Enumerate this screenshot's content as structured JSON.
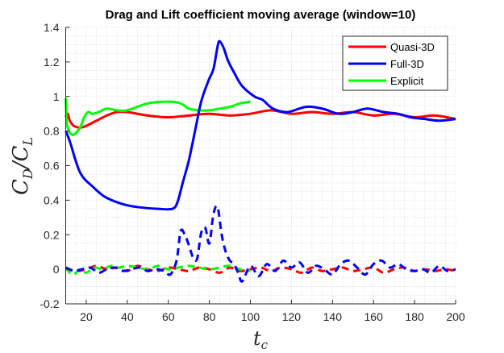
{
  "chart_data": {
    "type": "line",
    "title": "Drag and Lift coefficient moving average (window=10)",
    "xlabel": "t",
    "xlabel_sub": "c",
    "ylabel_parts": [
      "C",
      "D",
      "/C",
      "L"
    ],
    "xlim": [
      10,
      200
    ],
    "ylim": [
      -0.2,
      1.4
    ],
    "xticks": [
      20,
      40,
      60,
      80,
      100,
      120,
      140,
      160,
      180,
      200
    ],
    "yticks": [
      -0.2,
      0,
      0.2,
      0.4,
      0.6,
      0.8,
      1,
      1.2,
      1.4
    ],
    "ytick_labels": [
      "-0.2",
      "0",
      "0.2",
      "0.4",
      "0.6",
      "0.8",
      "1",
      "1.2",
      "1.4"
    ],
    "grid": "minor-dotted",
    "legend": {
      "position": "top-right",
      "entries": [
        "Quasi-3D",
        "Full-3D",
        "Explicit"
      ]
    },
    "colors": {
      "Quasi-3D": "#ff0000",
      "Full-3D": "#0000ff",
      "Explicit": "#00ff00"
    },
    "series": [
      {
        "name": "Quasi-3D",
        "quantity": "CD",
        "style": "solid",
        "x": [
          10,
          11,
          12,
          14,
          17,
          20,
          25,
          30,
          35,
          40,
          50,
          60,
          70,
          80,
          90,
          100,
          110,
          120,
          130,
          140,
          150,
          160,
          170,
          180,
          190,
          200
        ],
        "y": [
          0.88,
          0.9,
          0.86,
          0.83,
          0.82,
          0.83,
          0.86,
          0.89,
          0.91,
          0.91,
          0.89,
          0.88,
          0.89,
          0.9,
          0.89,
          0.9,
          0.92,
          0.9,
          0.91,
          0.9,
          0.91,
          0.89,
          0.9,
          0.88,
          0.89,
          0.87
        ]
      },
      {
        "name": "Full-3D",
        "quantity": "CD",
        "style": "solid",
        "x": [
          10,
          12,
          17,
          23,
          29,
          37,
          45,
          55,
          62,
          64.5,
          67,
          70,
          73,
          76,
          79.5,
          82,
          84,
          85,
          87,
          89,
          92,
          96,
          102,
          106,
          111,
          118,
          127,
          135,
          143,
          150,
          157,
          165,
          172,
          178,
          185,
          192,
          200
        ],
        "y": [
          0.8,
          0.74,
          0.56,
          0.48,
          0.42,
          0.38,
          0.36,
          0.35,
          0.35,
          0.39,
          0.5,
          0.63,
          0.8,
          0.97,
          1.09,
          1.16,
          1.29,
          1.32,
          1.28,
          1.21,
          1.14,
          1.06,
          1.0,
          0.98,
          0.93,
          0.91,
          0.94,
          0.93,
          0.9,
          0.91,
          0.93,
          0.91,
          0.9,
          0.88,
          0.87,
          0.86,
          0.87
        ]
      },
      {
        "name": "Explicit",
        "quantity": "CD",
        "style": "solid",
        "x": [
          10,
          10.5,
          11,
          12,
          14,
          17,
          19,
          21,
          23,
          26,
          30,
          35,
          40,
          50,
          60,
          66,
          70,
          75,
          80,
          85,
          90,
          95,
          100
        ],
        "y": [
          0.99,
          0.85,
          0.82,
          0.79,
          0.78,
          0.82,
          0.88,
          0.91,
          0.9,
          0.91,
          0.93,
          0.92,
          0.92,
          0.96,
          0.97,
          0.96,
          0.93,
          0.92,
          0.92,
          0.93,
          0.94,
          0.96,
          0.97
        ]
      },
      {
        "name": "Quasi-3D",
        "quantity": "CL",
        "style": "dashed",
        "x": [
          10,
          15,
          20,
          25,
          30,
          35,
          40,
          45,
          50,
          55,
          60,
          65,
          70,
          75,
          80,
          85,
          90,
          95,
          100,
          105,
          110,
          115,
          120,
          125,
          130,
          135,
          140,
          145,
          150,
          155,
          160,
          165,
          170,
          175,
          180,
          185,
          190,
          195,
          200
        ],
        "y": [
          0.01,
          -0.01,
          0.0,
          0.02,
          0.0,
          0.01,
          -0.01,
          0.02,
          0.0,
          -0.01,
          0.01,
          0.0,
          -0.01,
          0.01,
          0.0,
          -0.02,
          0.01,
          -0.01,
          0.0,
          0.01,
          -0.01,
          0.01,
          0.0,
          -0.02,
          0.01,
          -0.01,
          0.0,
          0.01,
          -0.01,
          0.0,
          0.01,
          -0.02,
          0.0,
          0.01,
          -0.01,
          0.0,
          -0.01,
          0.0,
          -0.01
        ]
      },
      {
        "name": "Full-3D",
        "quantity": "CL",
        "style": "dashed",
        "x": [
          10,
          14,
          18,
          22,
          26,
          30,
          34,
          38,
          42,
          46,
          50,
          54,
          58,
          61,
          64,
          66,
          68,
          70,
          72,
          74,
          76,
          78,
          80,
          82,
          84,
          86,
          88,
          90,
          92,
          94,
          96,
          100,
          104,
          108,
          112,
          116,
          120,
          124,
          128,
          132,
          136,
          140,
          144,
          148,
          152,
          156,
          160,
          164,
          168,
          172,
          176,
          180,
          184,
          188,
          192,
          196,
          200
        ],
        "y": [
          0.01,
          -0.01,
          0.0,
          0.01,
          -0.02,
          0.0,
          0.01,
          -0.01,
          0.0,
          0.01,
          -0.01,
          0.0,
          -0.01,
          -0.03,
          0.05,
          0.22,
          0.2,
          0.14,
          0.07,
          0.06,
          0.21,
          0.24,
          0.15,
          0.32,
          0.36,
          0.2,
          0.1,
          0.05,
          0.03,
          -0.02,
          -0.07,
          0.02,
          -0.04,
          0.03,
          -0.01,
          0.05,
          0.01,
          0.04,
          -0.02,
          0.02,
          0.0,
          -0.03,
          0.03,
          0.05,
          0.01,
          -0.03,
          0.03,
          0.05,
          0.01,
          0.03,
          0.0,
          -0.01,
          0.0,
          -0.02,
          0.02,
          -0.01,
          0.0
        ]
      },
      {
        "name": "Explicit",
        "quantity": "CL",
        "style": "dashed",
        "x": [
          10,
          12,
          14,
          17,
          20,
          24,
          28,
          32,
          36,
          40,
          45,
          50,
          55,
          60,
          65,
          70,
          75,
          80,
          85,
          90,
          95,
          100
        ],
        "y": [
          0.01,
          -0.02,
          -0.03,
          0.0,
          -0.02,
          0.01,
          0.0,
          0.02,
          0.01,
          0.02,
          0.01,
          0.0,
          0.02,
          0.0,
          0.01,
          0.02,
          0.01,
          0.0,
          0.01,
          0.02,
          0.0,
          -0.01
        ]
      }
    ]
  }
}
